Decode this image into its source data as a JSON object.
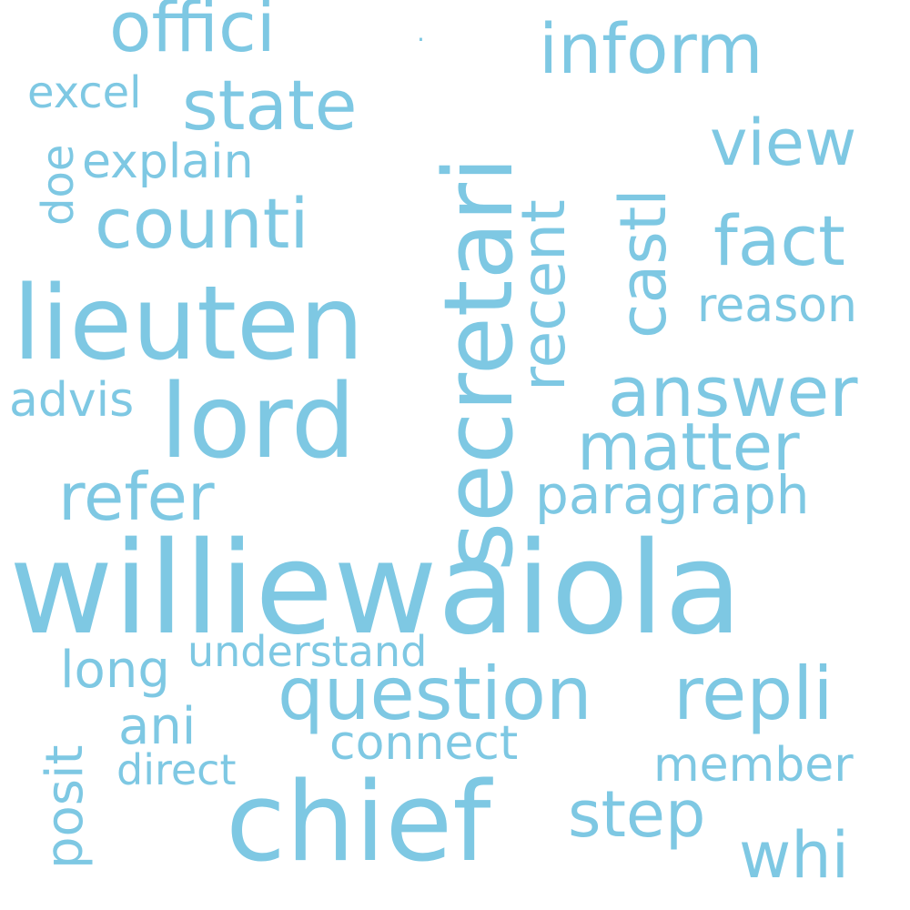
{
  "word_color": "#7ec8e3",
  "background_color": "#ffffff",
  "words": {
    "williewaiola": "williewaiola",
    "secretari": "secretari",
    "chief": "chief",
    "lieuten": "lieuten",
    "lord": "lord",
    "question": "question",
    "repli": "repli",
    "counti": "counti",
    "state": "state",
    "offici": "offici",
    "inform": "inform",
    "answer": "answer",
    "fact": "fact",
    "refer": "refer",
    "matter": "matter",
    "view": "view",
    "step": "step",
    "whi": "whi",
    "castl": "castl",
    "recent": "recent",
    "paragraph": "paragraph",
    "reason": "reason",
    "member": "member",
    "connect": "connect",
    "ani": "ani",
    "long": "long",
    "understand": "understand",
    "explain": "explain",
    "advis": "advis",
    "excel": "excel",
    "direct": "direct",
    "doe": "doe",
    "posit": "posit",
    "dot": "·"
  }
}
